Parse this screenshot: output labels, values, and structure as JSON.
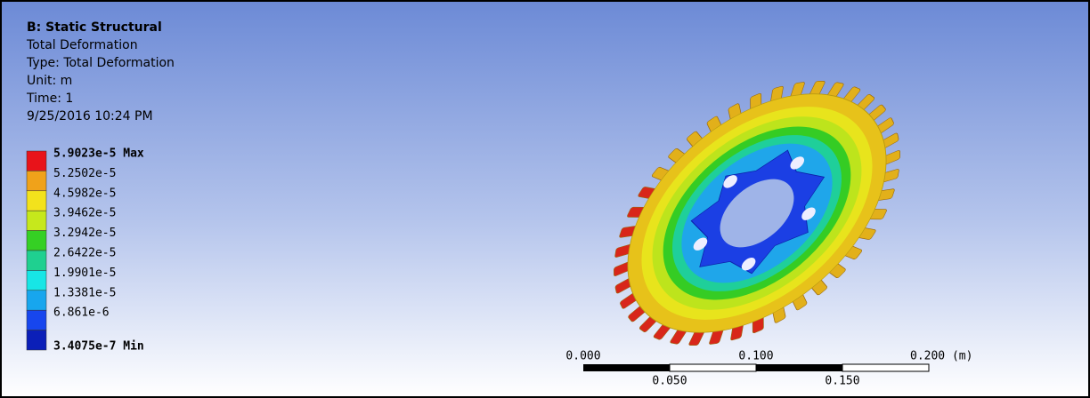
{
  "header": {
    "title": "B: Static Structural",
    "lines": [
      "Total Deformation",
      "Type: Total Deformation",
      "Unit: m",
      "Time: 1",
      "9/25/2016 10:24 PM"
    ]
  },
  "legend": {
    "labels": [
      "5.9023e-5 Max",
      "5.2502e-5",
      "4.5982e-5",
      "3.9462e-5",
      "3.2942e-5",
      "2.6422e-5",
      "1.9901e-5",
      "1.3381e-5",
      "6.861e-6",
      "3.4075e-7 Min"
    ],
    "colors": [
      "#e8131a",
      "#f0a21a",
      "#f3e21c",
      "#c6e81c",
      "#35d024",
      "#1fd090",
      "#17e6e6",
      "#17a6ee",
      "#1746ee",
      "#0b1fb8"
    ]
  },
  "scale_bar": {
    "top_labels": [
      "0.000",
      "0.100",
      "0.200 (m)"
    ],
    "bottom_labels": [
      "0.050",
      "0.150"
    ]
  }
}
